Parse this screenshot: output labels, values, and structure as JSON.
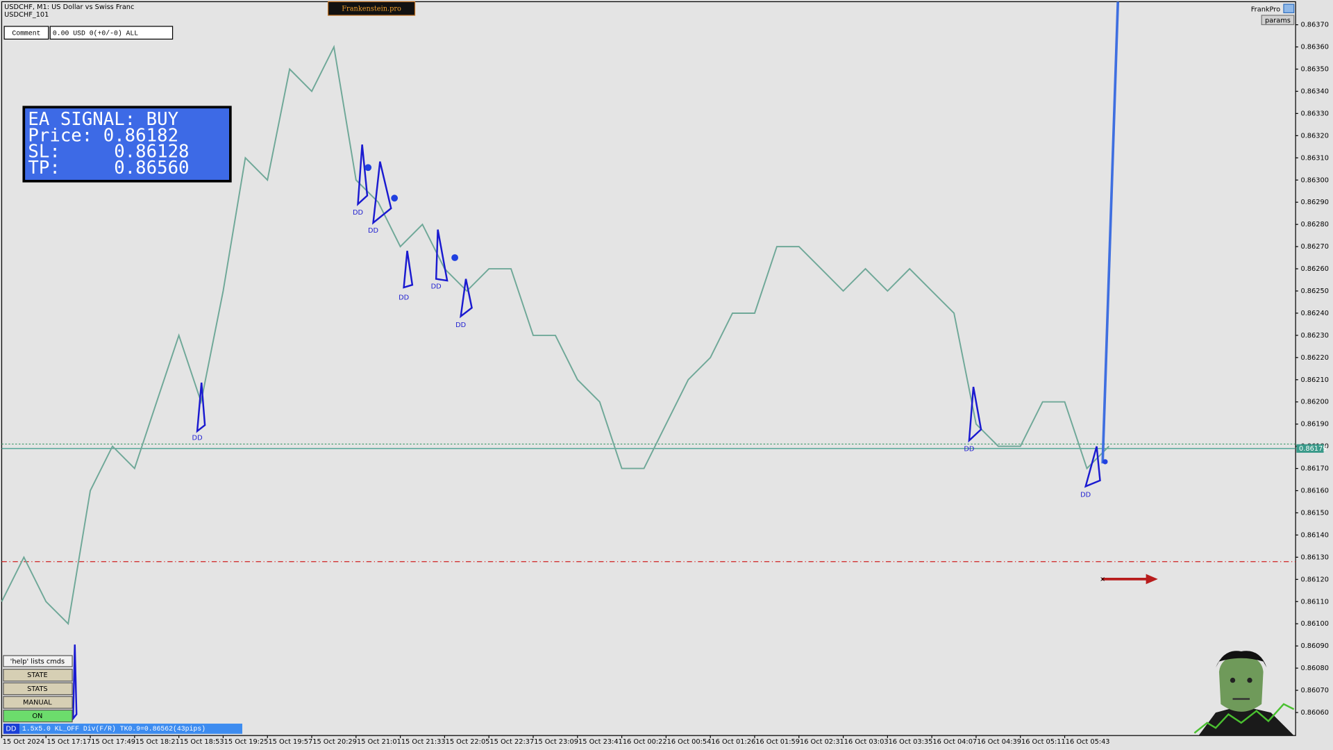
{
  "chart_data": {
    "type": "line",
    "categories": [
      "15 Oct 2024",
      null,
      "15 Oct 17:17",
      null,
      "15 Oct 17:49",
      null,
      "15 Oct 18:21",
      null,
      "15 Oct 18:53",
      null,
      "15 Oct 19:25",
      null,
      "15 Oct 19:57",
      null,
      "15 Oct 20:29",
      null,
      "15 Oct 21:01",
      null,
      "15 Oct 21:33",
      null,
      "15 Oct 22:05",
      null,
      "15 Oct 22:37",
      null,
      "15 Oct 23:09",
      null,
      "15 Oct 23:41",
      null,
      "16 Oct 00:22",
      null,
      "16 Oct 00:54",
      null,
      "16 Oct 01:26",
      null,
      "16 Oct 01:59",
      null,
      "16 Oct 02:31",
      null,
      "16 Oct 03:03",
      null,
      "16 Oct 03:35",
      null,
      "16 Oct 04:07",
      null,
      "16 Oct 04:39",
      null,
      "16 Oct 05:11",
      null,
      "16 Oct 05:43",
      null,
      null
    ],
    "values": [
      0.8611,
      0.8613,
      0.8611,
      0.861,
      0.8616,
      0.8618,
      0.8617,
      0.862,
      0.8623,
      0.862,
      0.8625,
      0.8631,
      0.863,
      0.8635,
      0.8634,
      0.8636,
      0.863,
      0.8629,
      0.8627,
      0.8628,
      0.8626,
      0.8625,
      0.8626,
      0.8626,
      0.8623,
      0.8623,
      0.8621,
      0.862,
      0.8617,
      0.8617,
      0.8619,
      0.8621,
      0.8622,
      0.8624,
      0.8624,
      0.8627,
      0.8627,
      0.8626,
      0.8625,
      0.8626,
      0.8625,
      0.8626,
      0.8625,
      0.8624,
      0.8619,
      0.8618,
      0.8618,
      0.862,
      0.862,
      0.8617,
      0.8618
    ],
    "color": "#6fa898",
    "ylim": [
      0.8605,
      0.8638
    ],
    "yticks": [
      {
        "value": 0.8606,
        "label": "0.86060"
      },
      {
        "value": 0.8607,
        "label": "0.86070"
      },
      {
        "value": 0.8608,
        "label": "0.86080"
      },
      {
        "value": 0.8609,
        "label": "0.86090"
      },
      {
        "value": 0.861,
        "label": "0.86100"
      },
      {
        "value": 0.8611,
        "label": "0.86110"
      },
      {
        "value": 0.8612,
        "label": "0.86120"
      },
      {
        "value": 0.8613,
        "label": "0.86130"
      },
      {
        "value": 0.8614,
        "label": "0.86140"
      },
      {
        "value": 0.8615,
        "label": "0.86150"
      },
      {
        "value": 0.8616,
        "label": "0.86160"
      },
      {
        "value": 0.8617,
        "label": "0.86170"
      },
      {
        "value": 0.8618,
        "label": "0.86180"
      },
      {
        "value": 0.8619,
        "label": "0.86190"
      },
      {
        "value": 0.862,
        "label": "0.86200"
      },
      {
        "value": 0.8621,
        "label": "0.86210"
      },
      {
        "value": 0.8622,
        "label": "0.86220"
      },
      {
        "value": 0.8623,
        "label": "0.86230"
      },
      {
        "value": 0.8624,
        "label": "0.86240"
      },
      {
        "value": 0.8625,
        "label": "0.86250"
      },
      {
        "value": 0.8626,
        "label": "0.86260"
      },
      {
        "value": 0.8627,
        "label": "0.86270"
      },
      {
        "value": 0.8628,
        "label": "0.86280"
      },
      {
        "value": 0.8629,
        "label": "0.86290"
      },
      {
        "value": 0.863,
        "label": "0.86300"
      },
      {
        "value": 0.8631,
        "label": "0.86310"
      },
      {
        "value": 0.8632,
        "label": "0.86320"
      },
      {
        "value": 0.8633,
        "label": "0.86330"
      },
      {
        "value": 0.8634,
        "label": "0.86340"
      },
      {
        "value": 0.8635,
        "label": "0.86350"
      },
      {
        "value": 0.8636,
        "label": "0.86360"
      },
      {
        "value": 0.8637,
        "label": "0.86370"
      }
    ],
    "grid": false,
    "current_price": 0.86179,
    "ask_price": 0.86181,
    "sl_price": 0.86128,
    "annotations": [
      "DD",
      "DD",
      "DD",
      "DD",
      "DD",
      "DD",
      "DD",
      "DD"
    ]
  },
  "ui": {
    "symbol": "USDCHF, M1:  US Dollar vs Swiss Franc",
    "sub": "USDCHF_101",
    "brand": "Frankenstein.pro",
    "comment_label": "Comment",
    "comment_value": "0.00 USD 0(+0/-0) ALL",
    "signal": [
      "EA SIGNAL: BUY",
      "Price: 0.86182",
      "SL:     0.86128",
      "TP:     0.86560"
    ],
    "frank": "FrankPro",
    "params": "params",
    "buttons": [
      "'help' lists cmds",
      "STATE",
      "STATS",
      "MANUAL",
      "ON"
    ],
    "status_tag": "DD",
    "status_text": "1.5x5.0 KL_OFF Div(F/R) TK0.9=0.86562(43pips)"
  }
}
